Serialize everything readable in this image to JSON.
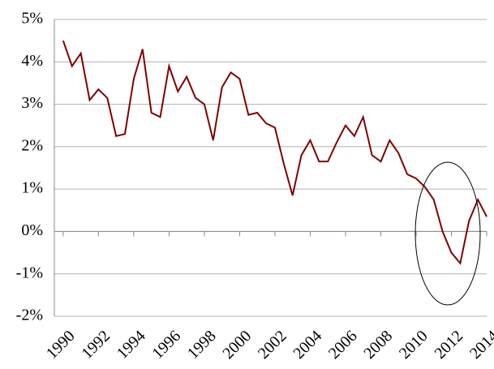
{
  "chart_data": {
    "type": "line",
    "x": [
      1990,
      1990.5,
      1991,
      1991.5,
      1992,
      1992.5,
      1993,
      1993.5,
      1994,
      1994.5,
      1995,
      1995.5,
      1996,
      1996.5,
      1997,
      1997.5,
      1998,
      1998.5,
      1999,
      1999.5,
      2000,
      2000.5,
      2001,
      2001.5,
      2002,
      2002.5,
      2003,
      2003.5,
      2004,
      2004.5,
      2005,
      2005.5,
      2006,
      2006.5,
      2007,
      2007.5,
      2008,
      2008.5,
      2009,
      2009.5,
      2010,
      2010.5,
      2011,
      2011.5,
      2012,
      2012.5,
      2013,
      2013.5,
      2014
    ],
    "series": [
      {
        "color": "#800000",
        "values": [
          4.5,
          3.9,
          4.2,
          3.1,
          3.35,
          3.15,
          2.25,
          2.3,
          3.6,
          4.3,
          2.8,
          2.7,
          3.9,
          3.3,
          3.65,
          3.15,
          3.0,
          2.15,
          3.4,
          3.75,
          3.6,
          2.75,
          2.8,
          2.55,
          2.45,
          1.6,
          0.85,
          1.8,
          2.15,
          1.65,
          1.65,
          2.1,
          2.5,
          2.25,
          2.7,
          1.8,
          1.65,
          2.15,
          1.85,
          1.35,
          1.25,
          1.05,
          0.75,
          0.0,
          -0.5,
          -0.75,
          0.25,
          0.75,
          0.35
        ]
      }
    ],
    "xlim": [
      1989.5,
      2014
    ],
    "xticks": [
      1990,
      1992,
      1994,
      1996,
      1998,
      2000,
      2002,
      2004,
      2006,
      2008,
      2010,
      2012,
      2014
    ],
    "ylim": [
      -2,
      5
    ],
    "yticks": [
      {
        "value": -2,
        "label": "-2%"
      },
      {
        "value": -1,
        "label": "-1%"
      },
      {
        "value": 0,
        "label": "0%"
      },
      {
        "value": 1,
        "label": "1%"
      },
      {
        "value": 2,
        "label": "2%"
      },
      {
        "value": 3,
        "label": "3%"
      },
      {
        "value": 4,
        "label": "4%"
      },
      {
        "value": 5,
        "label": "5%"
      }
    ],
    "grid": true
  }
}
